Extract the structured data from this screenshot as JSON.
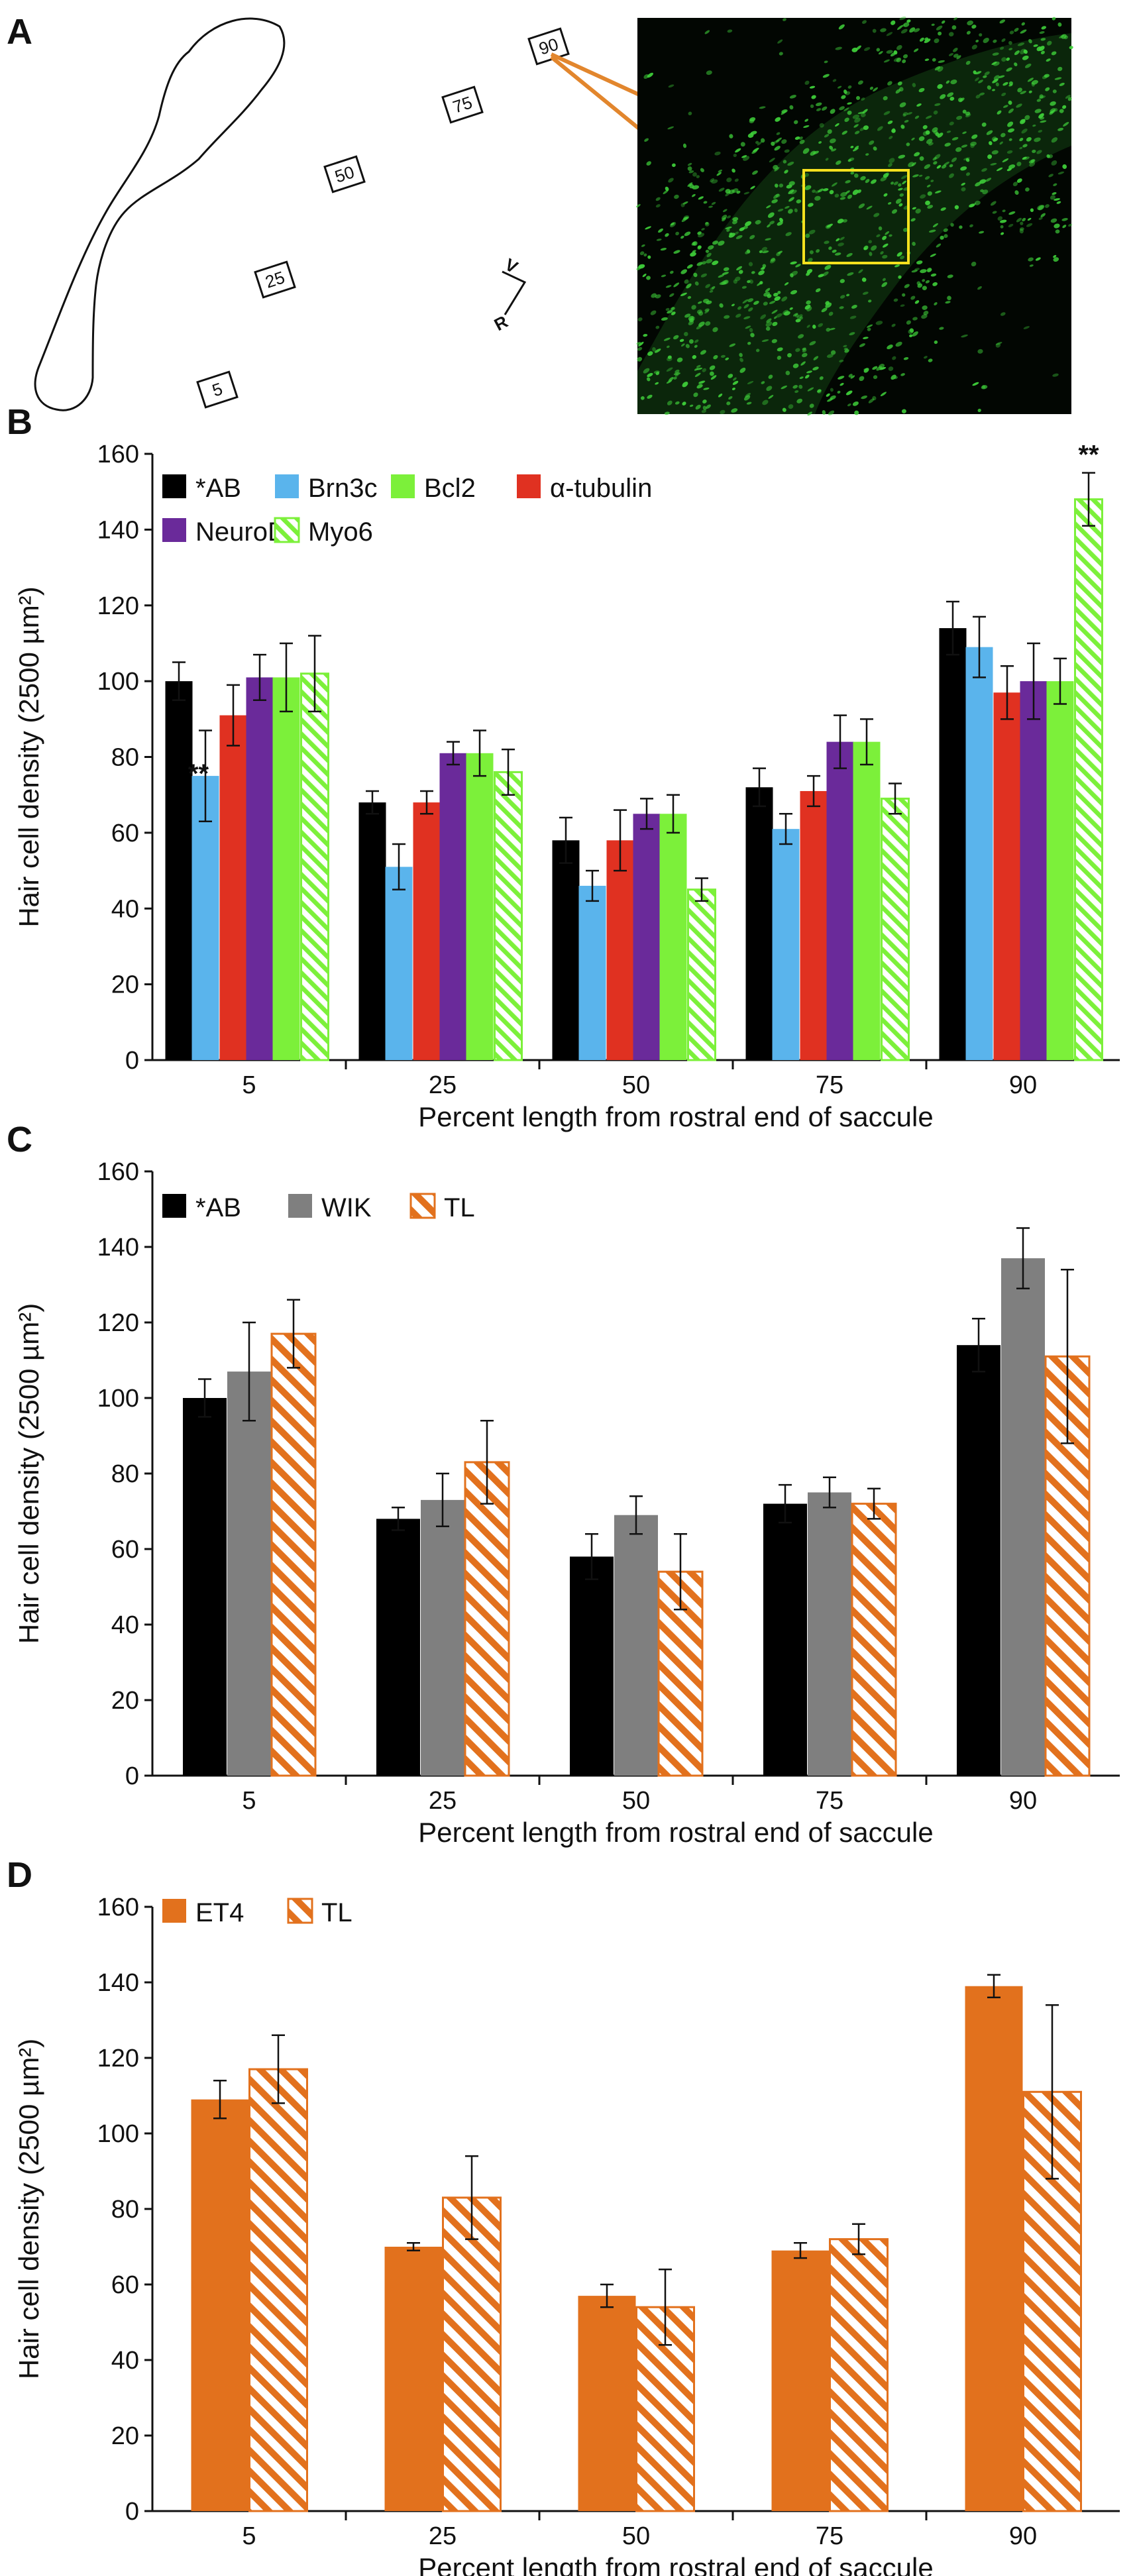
{
  "panel_a": {
    "label": "A",
    "markers": [
      "5",
      "25",
      "50",
      "75",
      "90"
    ],
    "orientation": {
      "vertical": "V",
      "horizontal": "R"
    },
    "colors": {
      "connector": "#e2862d",
      "inset_box": "#f4e11e",
      "micrograph_bg": "#020602",
      "cells": "#3fd13a"
    }
  },
  "chart_data": [
    {
      "panel": "B",
      "type": "bar",
      "xlabel": "Percent length from rostral end of saccule",
      "ylabel": "Hair cell density (2500 µm²)",
      "ylim": [
        0,
        160
      ],
      "yticks": [
        "0",
        "20",
        "40",
        "60",
        "80",
        "100",
        "120",
        "140",
        "160"
      ],
      "categories": [
        "5",
        "25",
        "50",
        "75",
        "90"
      ],
      "legend_placement": "top-left",
      "series": [
        {
          "name": "*AB",
          "color": "#000000",
          "hatch": false,
          "values": [
            100,
            68,
            58,
            72,
            114
          ],
          "errors": [
            5,
            3,
            6,
            5,
            7
          ]
        },
        {
          "name": "Brn3c",
          "color": "#5ab4ec",
          "hatch": false,
          "values": [
            75,
            51,
            46,
            61,
            109
          ],
          "errors": [
            12,
            6,
            4,
            4,
            8
          ]
        },
        {
          "name": "α-tubulin",
          "color": "#e03121",
          "hatch": false,
          "values": [
            91,
            68,
            58,
            71,
            97
          ],
          "errors": [
            8,
            3,
            8,
            4,
            7
          ]
        },
        {
          "name": "NeuroD",
          "color": "#6a2a9a",
          "hatch": false,
          "values": [
            101,
            81,
            65,
            84,
            100
          ],
          "errors": [
            6,
            3,
            4,
            7,
            10
          ]
        },
        {
          "name": "Bcl2",
          "color": "#7cf03a",
          "hatch": false,
          "values": [
            101,
            81,
            65,
            84,
            100
          ],
          "errors": [
            9,
            6,
            5,
            6,
            6
          ]
        },
        {
          "name": "Myo6",
          "color": "#7cf03a",
          "hatch": true,
          "values": [
            102,
            76,
            45,
            69,
            148
          ],
          "errors": [
            10,
            6,
            3,
            4,
            7
          ]
        }
      ],
      "legend": [
        {
          "name": "*AB",
          "row": 0,
          "col": 0,
          "series": 0
        },
        {
          "name": "Brn3c",
          "row": 0,
          "col": 1,
          "series": 1
        },
        {
          "name": "Bcl2",
          "row": 0,
          "col": 2,
          "series": 4
        },
        {
          "name": "α-tubulin",
          "row": 0,
          "col": 3,
          "series": 2
        },
        {
          "name": "NeuroD",
          "row": 1,
          "col": 0,
          "series": 3
        },
        {
          "name": "Myo6",
          "row": 1,
          "col": 1,
          "series": 5
        }
      ],
      "annotations": [
        {
          "text": "**",
          "category": "5",
          "series": "Brn3c"
        },
        {
          "text": "**",
          "category": "90",
          "series": "Myo6"
        }
      ]
    },
    {
      "panel": "C",
      "type": "bar",
      "xlabel": "Percent length from rostral end of saccule",
      "ylabel": "Hair cell density (2500 µm²)",
      "ylim": [
        0,
        160
      ],
      "yticks": [
        "0",
        "20",
        "40",
        "60",
        "80",
        "100",
        "120",
        "140",
        "160"
      ],
      "categories": [
        "5",
        "25",
        "50",
        "75",
        "90"
      ],
      "legend_placement": "top-left",
      "series": [
        {
          "name": "*AB",
          "color": "#000000",
          "hatch": false,
          "values": [
            100,
            68,
            58,
            72,
            114
          ],
          "errors": [
            5,
            3,
            6,
            5,
            7
          ]
        },
        {
          "name": "WIK",
          "color": "#7f7f7f",
          "hatch": false,
          "values": [
            107,
            73,
            69,
            75,
            137
          ],
          "errors": [
            13,
            7,
            5,
            4,
            8
          ]
        },
        {
          "name": "TL",
          "color": "#e2711d",
          "hatch": true,
          "values": [
            117,
            83,
            54,
            72,
            111
          ],
          "errors": [
            9,
            11,
            10,
            4,
            23
          ]
        }
      ],
      "legend": [
        {
          "name": "*AB",
          "row": 0,
          "col": 0,
          "series": 0
        },
        {
          "name": "WIK",
          "row": 0,
          "col": 1,
          "series": 1
        },
        {
          "name": "TL",
          "row": 0,
          "col": 2,
          "series": 2
        }
      ],
      "annotations": []
    },
    {
      "panel": "D",
      "type": "bar",
      "xlabel": "Percent length from rostral end of saccule",
      "ylabel": "Hair cell density (2500 µm²)",
      "ylim": [
        0,
        160
      ],
      "yticks": [
        "0",
        "20",
        "40",
        "60",
        "80",
        "100",
        "120",
        "140",
        "160"
      ],
      "categories": [
        "5",
        "25",
        "50",
        "75",
        "90"
      ],
      "legend_placement": "top-left",
      "series": [
        {
          "name": "ET4",
          "color": "#e2711d",
          "hatch": false,
          "values": [
            109,
            70,
            57,
            69,
            139
          ],
          "errors": [
            5,
            1,
            3,
            2,
            3
          ]
        },
        {
          "name": "TL",
          "color": "#e2711d",
          "hatch": true,
          "values": [
            117,
            83,
            54,
            72,
            111
          ],
          "errors": [
            9,
            11,
            10,
            4,
            23
          ]
        }
      ],
      "legend": [
        {
          "name": "ET4",
          "row": 0,
          "col": 0,
          "series": 0
        },
        {
          "name": "TL",
          "row": 0,
          "col": 1,
          "series": 1
        }
      ],
      "annotations": []
    }
  ]
}
